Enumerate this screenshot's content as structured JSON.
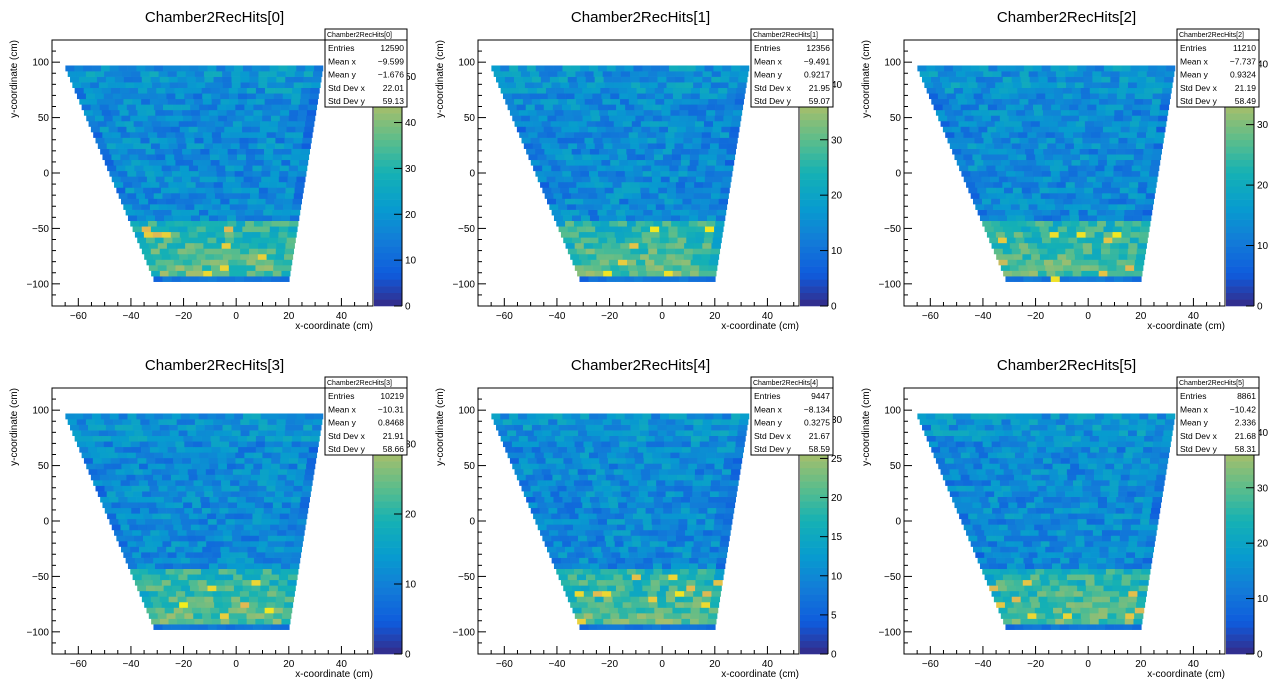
{
  "chart_data": [
    {
      "type": "heatmap",
      "title": "Chamber2RecHits[0]",
      "xlabel": "x-coordinate (cm)",
      "ylabel": "y-coordinate (cm)",
      "xlim": [
        -70,
        52
      ],
      "ylim": [
        -120,
        120
      ],
      "xticks": [
        -60,
        -40,
        -20,
        0,
        20,
        40
      ],
      "yticks": [
        -100,
        -50,
        0,
        50,
        100
      ],
      "zlim": [
        0,
        58
      ],
      "zticks": [
        0,
        10,
        20,
        30,
        40,
        50
      ],
      "stats": {
        "name": "Chamber2RecHits[0]",
        "rows": [
          [
            "Entries",
            "12590"
          ],
          [
            "Mean x",
            "−9.599"
          ],
          [
            "Mean y",
            "−1.676"
          ],
          [
            "Std Dev x",
            "22.01"
          ],
          [
            "Std Dev y",
            "59.13"
          ]
        ]
      }
    },
    {
      "type": "heatmap",
      "title": "Chamber2RecHits[1]",
      "xlabel": "x-coordinate (cm)",
      "ylabel": "y-coordinate (cm)",
      "xlim": [
        -70,
        52
      ],
      "ylim": [
        -120,
        120
      ],
      "xticks": [
        -60,
        -40,
        -20,
        0,
        20,
        40
      ],
      "yticks": [
        -100,
        -50,
        0,
        50,
        100
      ],
      "zlim": [
        0,
        48
      ],
      "zticks": [
        0,
        10,
        20,
        30,
        40
      ],
      "stats": {
        "name": "Chamber2RecHits[1]",
        "rows": [
          [
            "Entries",
            "12356"
          ],
          [
            "Mean x",
            "−9.491"
          ],
          [
            "Mean y",
            "0.9217"
          ],
          [
            "Std Dev x",
            "21.95"
          ],
          [
            "Std Dev y",
            "59.07"
          ]
        ]
      }
    },
    {
      "type": "heatmap",
      "title": "Chamber2RecHits[2]",
      "xlabel": "x-coordinate (cm)",
      "ylabel": "y-coordinate (cm)",
      "xlim": [
        -70,
        52
      ],
      "ylim": [
        -120,
        120
      ],
      "xticks": [
        -60,
        -40,
        -20,
        0,
        20,
        40
      ],
      "yticks": [
        -100,
        -50,
        0,
        50,
        100
      ],
      "zlim": [
        0,
        44
      ],
      "zticks": [
        0,
        10,
        20,
        30,
        40
      ],
      "stats": {
        "name": "Chamber2RecHits[2]",
        "rows": [
          [
            "Entries",
            "11210"
          ],
          [
            "Mean x",
            "−7.737"
          ],
          [
            "Mean y",
            "0.9324"
          ],
          [
            "Std Dev x",
            "21.19"
          ],
          [
            "Std Dev y",
            "58.49"
          ]
        ]
      }
    },
    {
      "type": "heatmap",
      "title": "Chamber2RecHits[3]",
      "xlabel": "x-coordinate (cm)",
      "ylabel": "y-coordinate (cm)",
      "xlim": [
        -70,
        52
      ],
      "ylim": [
        -120,
        120
      ],
      "xticks": [
        -60,
        -40,
        -20,
        0,
        20,
        40
      ],
      "yticks": [
        -100,
        -50,
        0,
        50,
        100
      ],
      "zlim": [
        0,
        38
      ],
      "zticks": [
        0,
        10,
        20,
        30
      ],
      "stats": {
        "name": "Chamber2RecHits[3]",
        "rows": [
          [
            "Entries",
            "10219"
          ],
          [
            "Mean x",
            "−10.31"
          ],
          [
            "Mean y",
            "0.8468"
          ],
          [
            "Std Dev x",
            "21.91"
          ],
          [
            "Std Dev y",
            "58.66"
          ]
        ]
      }
    },
    {
      "type": "heatmap",
      "title": "Chamber2RecHits[4]",
      "xlabel": "x-coordinate (cm)",
      "ylabel": "y-coordinate (cm)",
      "xlim": [
        -70,
        52
      ],
      "ylim": [
        -120,
        120
      ],
      "xticks": [
        -60,
        -40,
        -20,
        0,
        20,
        40
      ],
      "yticks": [
        -100,
        -50,
        0,
        50,
        100
      ],
      "zlim": [
        0,
        34
      ],
      "zticks": [
        0,
        5,
        10,
        15,
        20,
        25,
        30
      ],
      "stats": {
        "name": "Chamber2RecHits[4]",
        "rows": [
          [
            "Entries",
            "9447"
          ],
          [
            "Mean x",
            "−8.134"
          ],
          [
            "Mean y",
            "0.3275"
          ],
          [
            "Std Dev x",
            "21.67"
          ],
          [
            "Std Dev y",
            "58.59"
          ]
        ]
      }
    },
    {
      "type": "heatmap",
      "title": "Chamber2RecHits[5]",
      "xlabel": "x-coordinate (cm)",
      "ylabel": "y-coordinate (cm)",
      "xlim": [
        -70,
        52
      ],
      "ylim": [
        -120,
        120
      ],
      "xticks": [
        -60,
        -40,
        -20,
        0,
        20,
        40
      ],
      "yticks": [
        -100,
        -50,
        0,
        50,
        100
      ],
      "zlim": [
        0,
        48
      ],
      "zticks": [
        0,
        10,
        20,
        30,
        40
      ],
      "stats": {
        "name": "Chamber2RecHits[5]",
        "rows": [
          [
            "Entries",
            "8861"
          ],
          [
            "Mean x",
            "−10.42"
          ],
          [
            "Mean y",
            "2.336"
          ],
          [
            "Std Dev x",
            "21.68"
          ],
          [
            "Std Dev y",
            "58.31"
          ]
        ]
      }
    }
  ]
}
